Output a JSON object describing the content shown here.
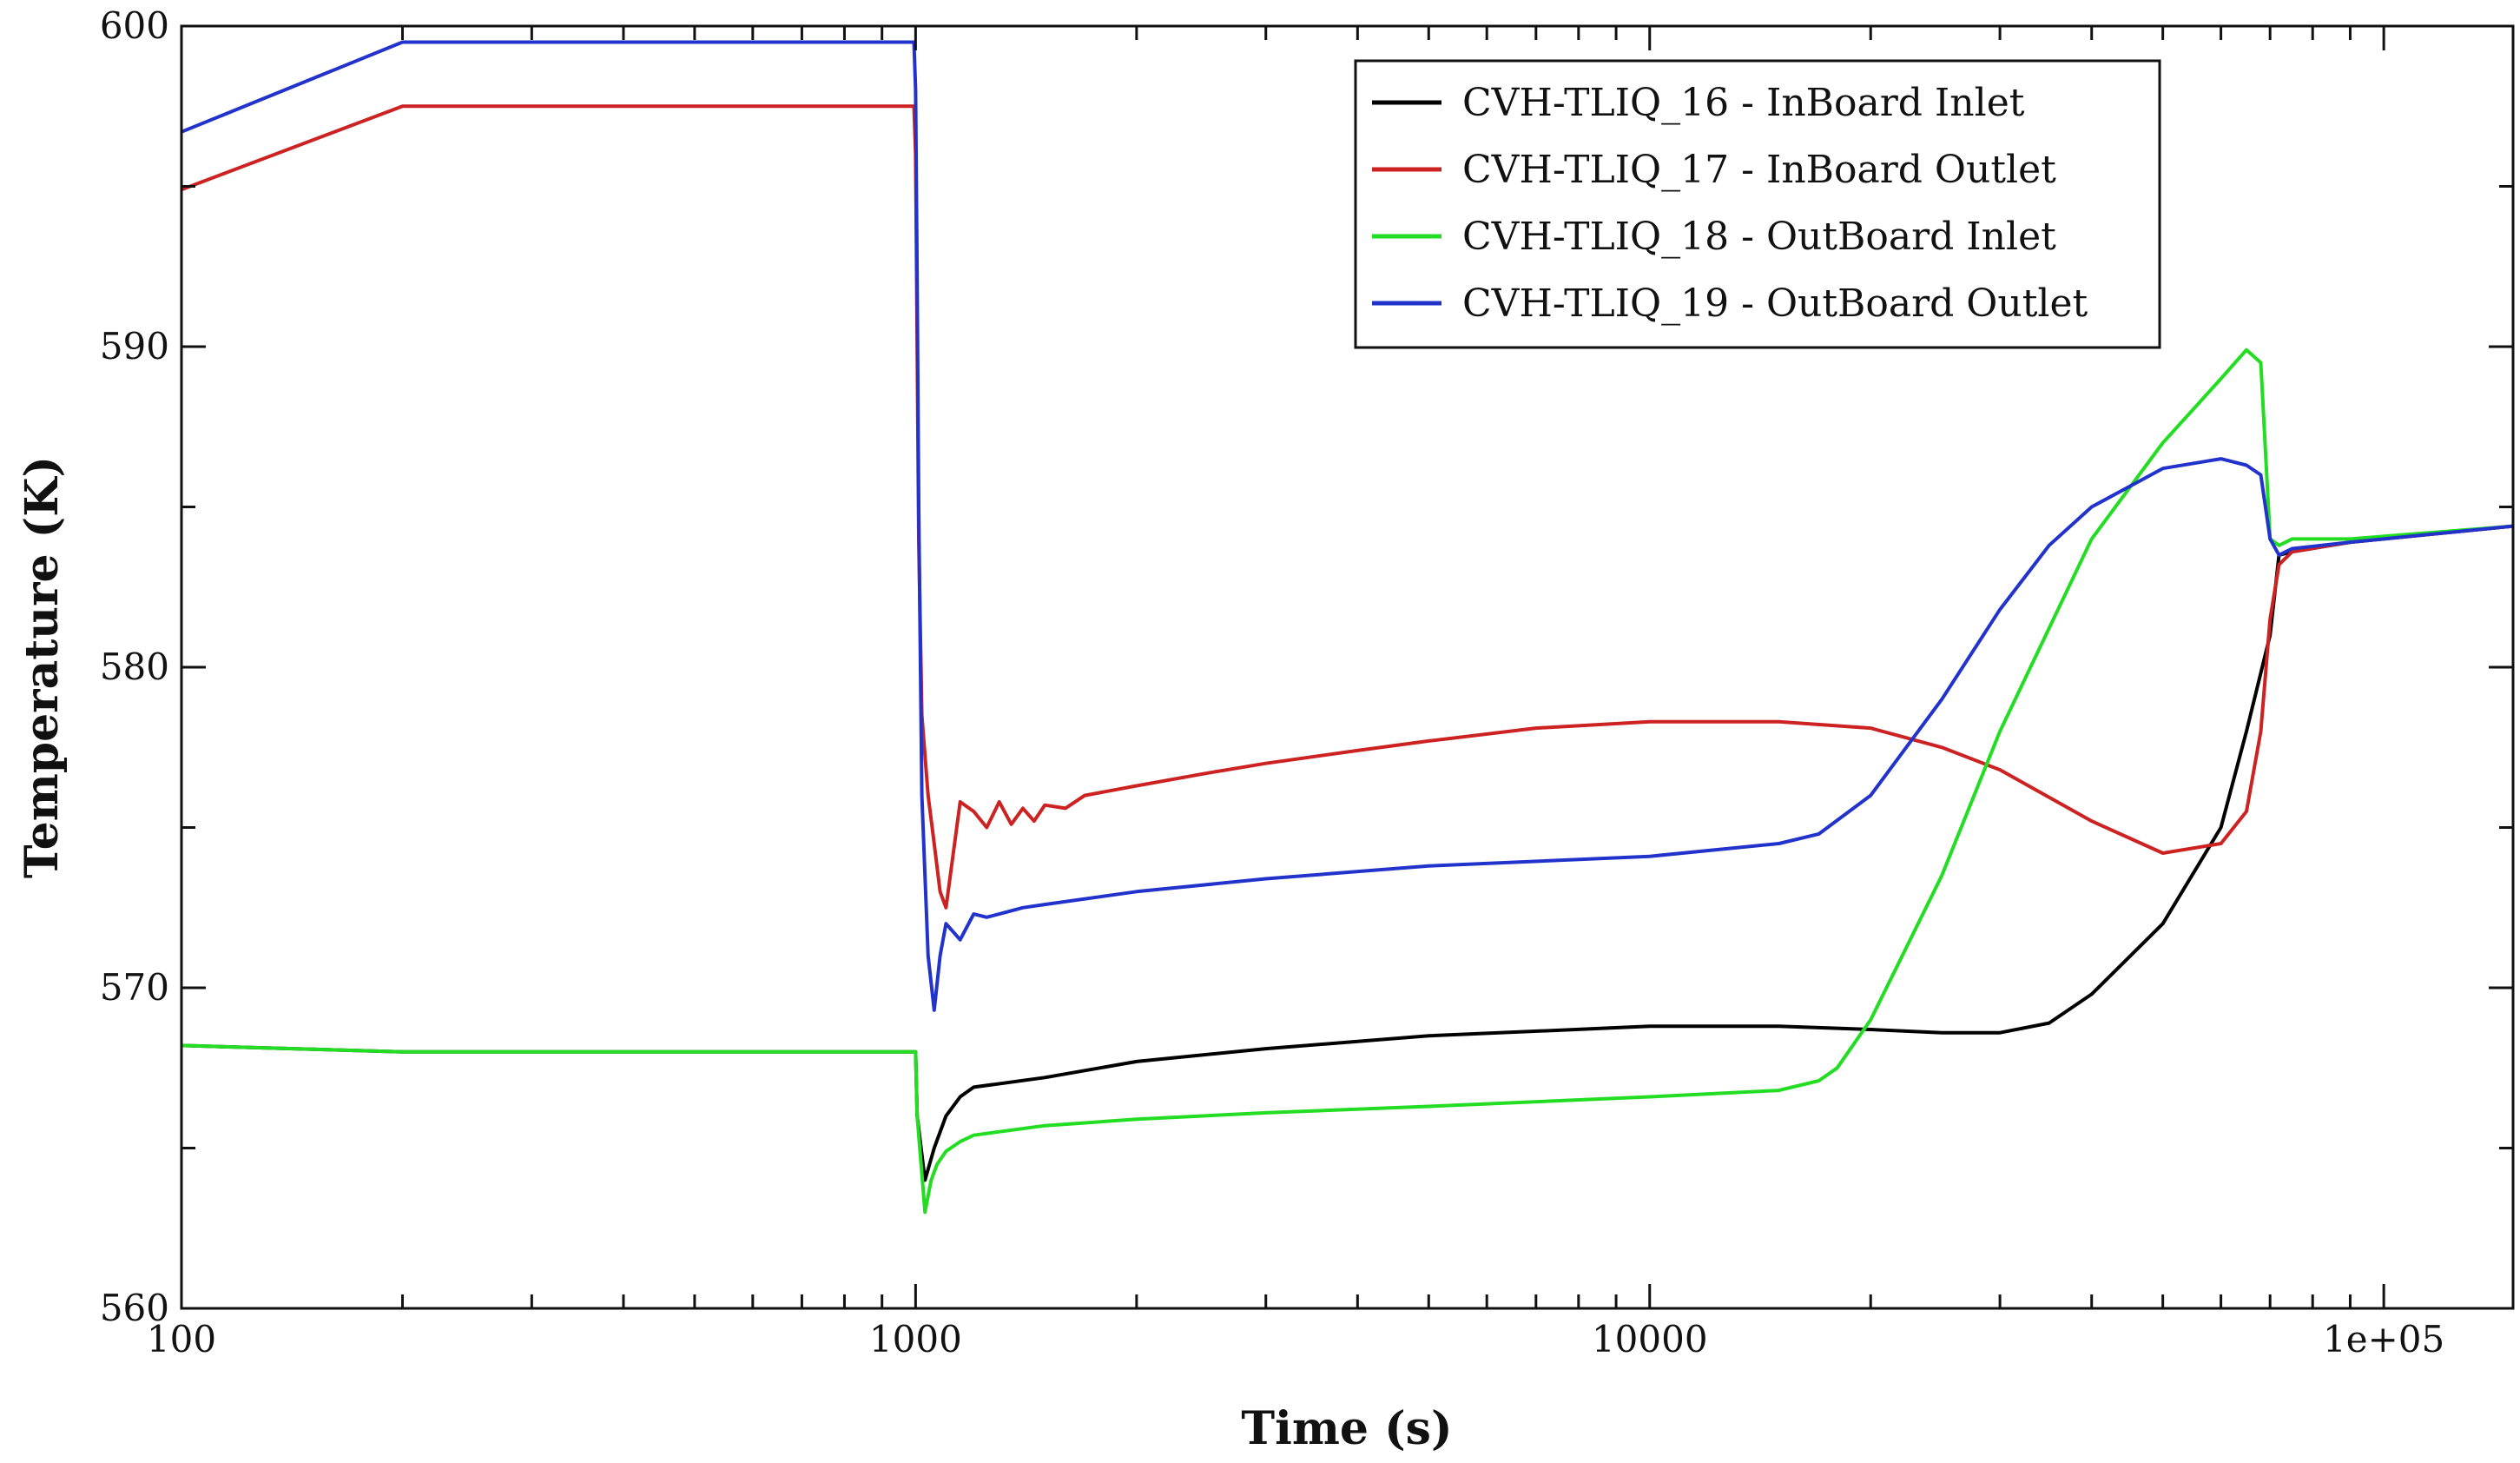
{
  "chart_data": {
    "type": "line",
    "title": "",
    "xlabel": "Time (s)",
    "ylabel": "Temperature (K)",
    "xscale": "log",
    "xlim": [
      100,
      150000
    ],
    "ylim": [
      560,
      600
    ],
    "x_ticks": [
      {
        "value": 100,
        "label": "100"
      },
      {
        "value": 1000,
        "label": "1000"
      },
      {
        "value": 10000,
        "label": "10000"
      },
      {
        "value": 100000,
        "label": "1e+05"
      }
    ],
    "y_ticks": [
      {
        "value": 560,
        "label": "560"
      },
      {
        "value": 570,
        "label": "570"
      },
      {
        "value": 580,
        "label": "580"
      },
      {
        "value": 590,
        "label": "590"
      },
      {
        "value": 600,
        "label": "600"
      }
    ],
    "grid": false,
    "legend_position": "top-right",
    "series": [
      {
        "name": "CVH-TLIQ_16 - InBoard Inlet",
        "color": "#000000",
        "x": [
          100,
          200,
          1000,
          1005,
          1030,
          1060,
          1100,
          1150,
          1200,
          1500,
          2000,
          3000,
          5000,
          10000,
          15000,
          20000,
          25000,
          30000,
          35000,
          40000,
          50000,
          60000,
          65000,
          70000,
          72000,
          75000,
          90000,
          150000
        ],
        "y": [
          568.2,
          568.0,
          568.0,
          566.0,
          564.0,
          565.0,
          566.0,
          566.6,
          566.9,
          567.2,
          567.7,
          568.1,
          568.5,
          568.8,
          568.8,
          568.7,
          568.6,
          568.6,
          568.9,
          569.8,
          572.0,
          575.0,
          578.0,
          581.0,
          583.5,
          583.6,
          583.9,
          584.4
        ]
      },
      {
        "name": "CVH-TLIQ_17 - InBoard Outlet",
        "color": "#cc2222",
        "x": [
          100,
          200,
          995,
          1000,
          1005,
          1010,
          1020,
          1040,
          1060,
          1080,
          1100,
          1150,
          1200,
          1250,
          1300,
          1350,
          1400,
          1450,
          1500,
          1600,
          1700,
          2000,
          2500,
          3000,
          4000,
          5000,
          7000,
          10000,
          15000,
          20000,
          25000,
          30000,
          40000,
          50000,
          60000,
          65000,
          68000,
          70000,
          72000,
          75000,
          90000,
          150000
        ],
        "y": [
          594.9,
          597.5,
          597.5,
          596.0,
          590.0,
          584.0,
          578.5,
          576.0,
          574.5,
          573.0,
          572.5,
          575.8,
          575.5,
          575.0,
          575.8,
          575.1,
          575.6,
          575.2,
          575.7,
          575.6,
          576.0,
          576.3,
          576.7,
          577.0,
          577.4,
          577.7,
          578.1,
          578.3,
          578.3,
          578.1,
          577.5,
          576.8,
          575.2,
          574.2,
          574.5,
          575.5,
          578.0,
          581.5,
          583.2,
          583.6,
          583.9,
          584.4
        ]
      },
      {
        "name": "CVH-TLIQ_18 - OutBoard Inlet",
        "color": "#22dd22",
        "x": [
          100,
          200,
          1000,
          1005,
          1030,
          1050,
          1070,
          1100,
          1150,
          1200,
          1500,
          2000,
          3000,
          5000,
          10000,
          15000,
          17000,
          18000,
          20000,
          25000,
          30000,
          40000,
          50000,
          60000,
          65000,
          68000,
          70000,
          72000,
          75000,
          90000,
          150000
        ],
        "y": [
          568.2,
          568.0,
          568.0,
          566.0,
          563.0,
          564.0,
          564.5,
          564.9,
          565.2,
          565.4,
          565.7,
          565.9,
          566.1,
          566.3,
          566.6,
          566.8,
          567.1,
          567.5,
          569.0,
          573.5,
          578.0,
          584.0,
          587.0,
          589.0,
          589.9,
          589.5,
          584.0,
          583.8,
          584.0,
          584.0,
          584.4
        ]
      },
      {
        "name": "CVH-TLIQ_19 - OutBoard Outlet",
        "color": "#2233cc",
        "x": [
          100,
          200,
          995,
          1000,
          1005,
          1010,
          1020,
          1040,
          1060,
          1080,
          1100,
          1150,
          1200,
          1250,
          1300,
          1400,
          1500,
          2000,
          3000,
          5000,
          10000,
          15000,
          17000,
          20000,
          25000,
          30000,
          35000,
          40000,
          50000,
          60000,
          65000,
          68000,
          70000,
          72000,
          75000,
          90000,
          150000
        ],
        "y": [
          596.7,
          599.5,
          599.5,
          598.0,
          592.0,
          585.0,
          576.0,
          571.0,
          569.3,
          571.0,
          572.0,
          571.5,
          572.3,
          572.2,
          572.3,
          572.5,
          572.6,
          573.0,
          573.4,
          573.8,
          574.1,
          574.5,
          574.8,
          576.0,
          579.0,
          581.8,
          583.8,
          585.0,
          586.2,
          586.5,
          586.3,
          586.0,
          584.0,
          583.5,
          583.7,
          583.9,
          584.4
        ]
      }
    ]
  }
}
